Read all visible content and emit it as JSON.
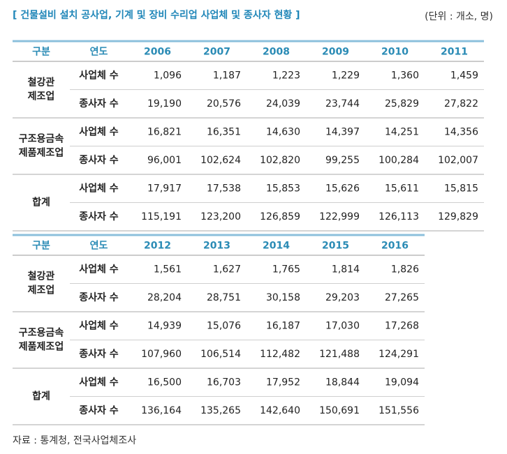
{
  "title": "[ 건물설비 설치 공사업, 기계 및 장비 수리업 사업체 및 종사자 현황 ]",
  "unit": "(단위 : 개소, 명)",
  "tables": [
    {
      "header": [
        "구분",
        "연도",
        "2006",
        "2007",
        "2008",
        "2009",
        "2010",
        "2011"
      ],
      "groups": [
        {
          "name": [
            "철강관",
            "제조업"
          ],
          "rows": [
            {
              "label": "사업체 수",
              "values": [
                "1,096",
                "1,187",
                "1,223",
                "1,229",
                "1,360",
                "1,459"
              ]
            },
            {
              "label": "종사자 수",
              "values": [
                "19,190",
                "20,576",
                "24,039",
                "23,744",
                "25,829",
                "27,822"
              ]
            }
          ]
        },
        {
          "name": [
            "구조용금속",
            "제품제조업"
          ],
          "rows": [
            {
              "label": "사업체 수",
              "values": [
                "16,821",
                "16,351",
                "14,630",
                "14,397",
                "14,251",
                "14,356"
              ]
            },
            {
              "label": "종사자 수",
              "values": [
                "96,001",
                "102,624",
                "102,820",
                "99,255",
                "100,284",
                "102,007"
              ]
            }
          ]
        },
        {
          "name": [
            "합계"
          ],
          "rows": [
            {
              "label": "사업체 수",
              "values": [
                "17,917",
                "17,538",
                "15,853",
                "15,626",
                "15,611",
                "15,815"
              ]
            },
            {
              "label": "종사자 수",
              "values": [
                "115,191",
                "123,200",
                "126,859",
                "122,999",
                "126,113",
                "129,829"
              ]
            }
          ]
        }
      ]
    },
    {
      "header": [
        "구분",
        "연도",
        "2012",
        "2013",
        "2014",
        "2015",
        "2016"
      ],
      "groups": [
        {
          "name": [
            "철강관",
            "제조업"
          ],
          "rows": [
            {
              "label": "사업체 수",
              "values": [
                "1,561",
                "1,627",
                "1,765",
                "1,814",
                "1,826"
              ]
            },
            {
              "label": "종사자 수",
              "values": [
                "28,204",
                "28,751",
                "30,158",
                "29,203",
                "27,265"
              ]
            }
          ]
        },
        {
          "name": [
            "구조용금속",
            "제품제조업"
          ],
          "rows": [
            {
              "label": "사업체 수",
              "values": [
                "14,939",
                "15,076",
                "16,187",
                "17,030",
                "17,268"
              ]
            },
            {
              "label": "종사자 수",
              "values": [
                "107,960",
                "106,514",
                "112,482",
                "121,488",
                "124,291"
              ]
            }
          ]
        },
        {
          "name": [
            "합계"
          ],
          "rows": [
            {
              "label": "사업체 수",
              "values": [
                "16,500",
                "16,703",
                "17,952",
                "18,844",
                "19,094"
              ]
            },
            {
              "label": "종사자 수",
              "values": [
                "136,164",
                "135,265",
                "142,640",
                "150,691",
                "151,556"
              ]
            }
          ]
        }
      ]
    }
  ],
  "source": "자료 : 통계청, 전국사업체조사"
}
